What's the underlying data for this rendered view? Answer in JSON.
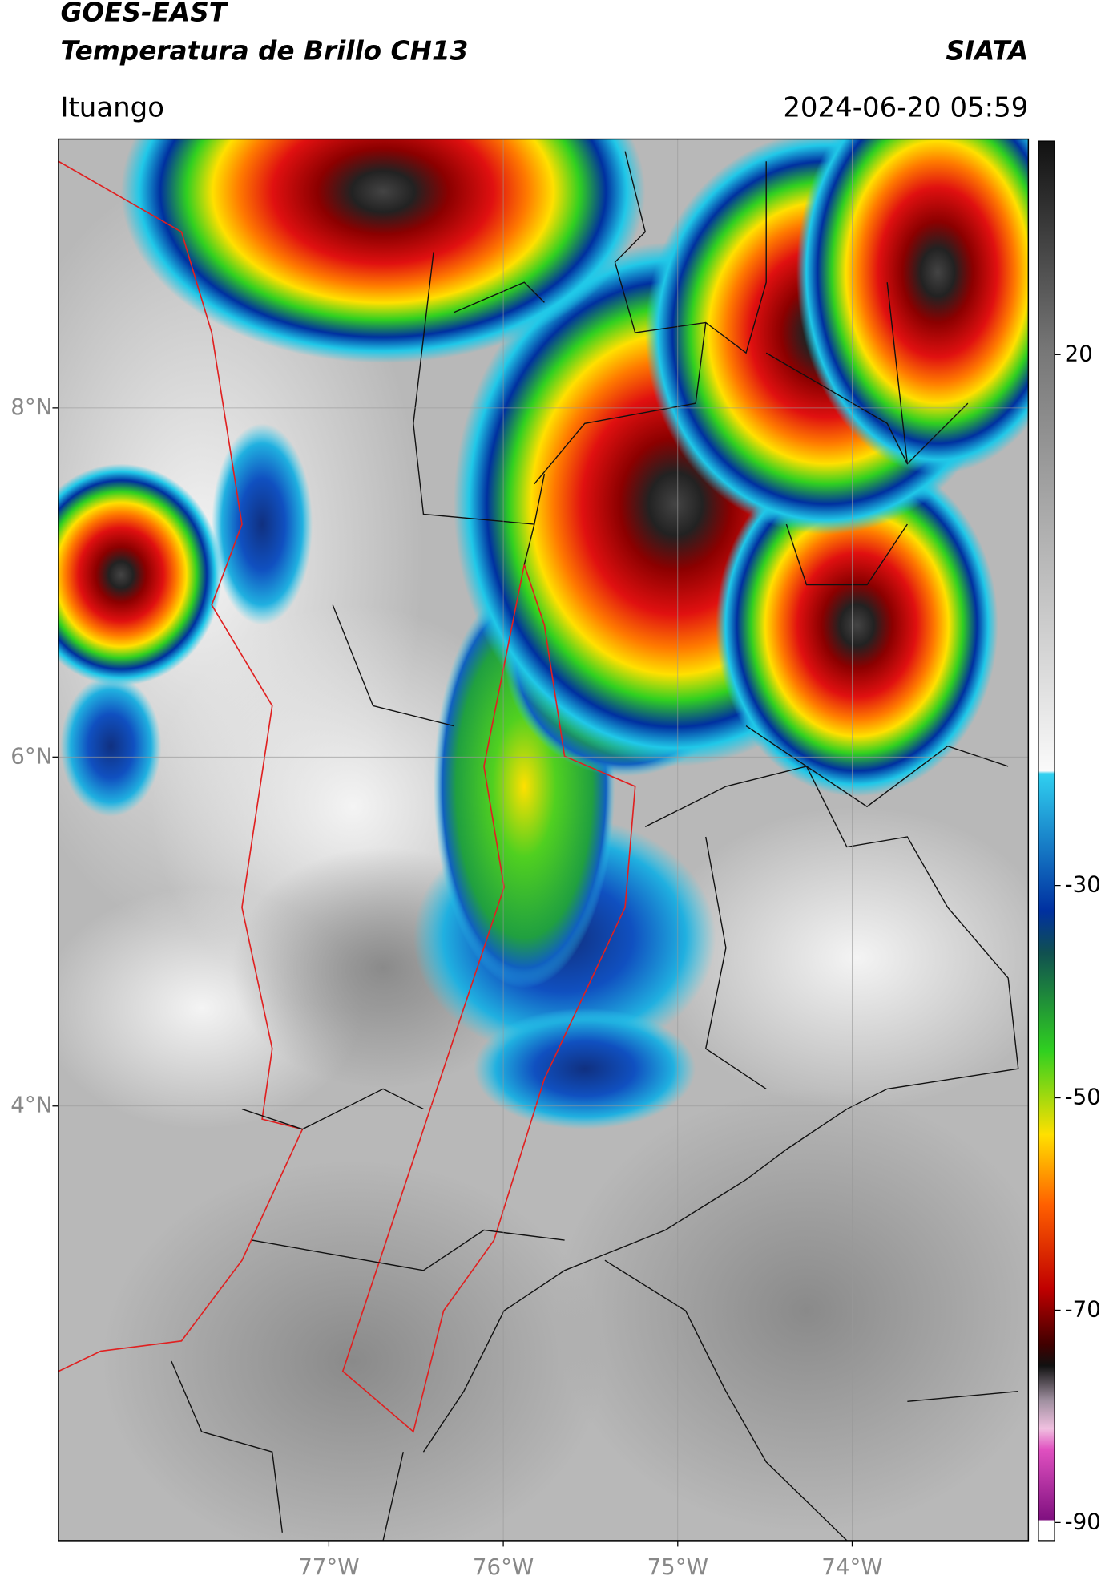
{
  "header": {
    "satellite": "GOES-EAST",
    "product": "Temperatura de Brillo CH13",
    "organization": "SIATA",
    "region": "Ituango",
    "datetime": "2024-06-20 05:59"
  },
  "map": {
    "xlim": [
      -78.55,
      -72.99
    ],
    "ylim": [
      1.51,
      9.54
    ],
    "xticks": [
      {
        "value": -77,
        "label": "77°W"
      },
      {
        "value": -76,
        "label": "76°W"
      },
      {
        "value": -75,
        "label": "75°W"
      },
      {
        "value": -74,
        "label": "74°W"
      }
    ],
    "yticks": [
      {
        "value": 8,
        "label": "8°N"
      },
      {
        "value": 6,
        "label": "6°N"
      },
      {
        "value": 4,
        "label": "4°N"
      }
    ],
    "grid": true
  },
  "colorbar": {
    "range": [
      -91.7,
      40.1
    ],
    "ticks": [
      20,
      -30,
      -50,
      -70,
      -90
    ]
  }
}
